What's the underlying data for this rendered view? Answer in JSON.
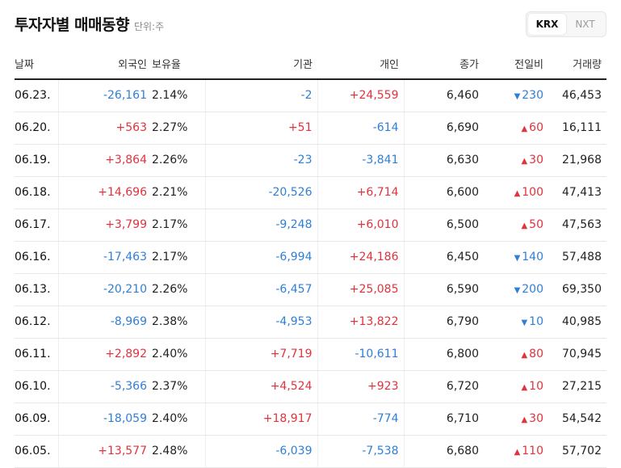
{
  "title": "투자자별 매매동향",
  "unit": "단위:주",
  "market_tabs": [
    {
      "label": "KRX",
      "active": true
    },
    {
      "label": "NXT",
      "active": false
    }
  ],
  "columns": [
    "날짜",
    "외국인",
    "보유율",
    "기관",
    "개인",
    "종가",
    "전일비",
    "거래량"
  ],
  "colors": {
    "up": "#e0333d",
    "down": "#2f7fd6"
  },
  "rows": [
    {
      "date": "06.23.",
      "foreign": "-26,161",
      "foreign_dir": "down",
      "hold": "2.14%",
      "inst": "-2",
      "inst_dir": "down",
      "indiv": "+24,559",
      "indiv_dir": "up",
      "close": "6,460",
      "chg": "230",
      "chg_dir": "down",
      "volume": "46,453"
    },
    {
      "date": "06.20.",
      "foreign": "+563",
      "foreign_dir": "up",
      "hold": "2.27%",
      "inst": "+51",
      "inst_dir": "up",
      "indiv": "-614",
      "indiv_dir": "down",
      "close": "6,690",
      "chg": "60",
      "chg_dir": "up",
      "volume": "16,111"
    },
    {
      "date": "06.19.",
      "foreign": "+3,864",
      "foreign_dir": "up",
      "hold": "2.26%",
      "inst": "-23",
      "inst_dir": "down",
      "indiv": "-3,841",
      "indiv_dir": "down",
      "close": "6,630",
      "chg": "30",
      "chg_dir": "up",
      "volume": "21,968"
    },
    {
      "date": "06.18.",
      "foreign": "+14,696",
      "foreign_dir": "up",
      "hold": "2.21%",
      "inst": "-20,526",
      "inst_dir": "down",
      "indiv": "+6,714",
      "indiv_dir": "up",
      "close": "6,600",
      "chg": "100",
      "chg_dir": "up",
      "volume": "47,413"
    },
    {
      "date": "06.17.",
      "foreign": "+3,799",
      "foreign_dir": "up",
      "hold": "2.17%",
      "inst": "-9,248",
      "inst_dir": "down",
      "indiv": "+6,010",
      "indiv_dir": "up",
      "close": "6,500",
      "chg": "50",
      "chg_dir": "up",
      "volume": "47,563"
    },
    {
      "date": "06.16.",
      "foreign": "-17,463",
      "foreign_dir": "down",
      "hold": "2.17%",
      "inst": "-6,994",
      "inst_dir": "down",
      "indiv": "+24,186",
      "indiv_dir": "up",
      "close": "6,450",
      "chg": "140",
      "chg_dir": "down",
      "volume": "57,488"
    },
    {
      "date": "06.13.",
      "foreign": "-20,210",
      "foreign_dir": "down",
      "hold": "2.26%",
      "inst": "-6,457",
      "inst_dir": "down",
      "indiv": "+25,085",
      "indiv_dir": "up",
      "close": "6,590",
      "chg": "200",
      "chg_dir": "down",
      "volume": "69,350"
    },
    {
      "date": "06.12.",
      "foreign": "-8,969",
      "foreign_dir": "down",
      "hold": "2.38%",
      "inst": "-4,953",
      "inst_dir": "down",
      "indiv": "+13,822",
      "indiv_dir": "up",
      "close": "6,790",
      "chg": "10",
      "chg_dir": "down",
      "volume": "40,985"
    },
    {
      "date": "06.11.",
      "foreign": "+2,892",
      "foreign_dir": "up",
      "hold": "2.40%",
      "inst": "+7,719",
      "inst_dir": "up",
      "indiv": "-10,611",
      "indiv_dir": "down",
      "close": "6,800",
      "chg": "80",
      "chg_dir": "up",
      "volume": "70,945"
    },
    {
      "date": "06.10.",
      "foreign": "-5,366",
      "foreign_dir": "down",
      "hold": "2.37%",
      "inst": "+4,524",
      "inst_dir": "up",
      "indiv": "+923",
      "indiv_dir": "up",
      "close": "6,720",
      "chg": "10",
      "chg_dir": "up",
      "volume": "27,215"
    },
    {
      "date": "06.09.",
      "foreign": "-18,059",
      "foreign_dir": "down",
      "hold": "2.40%",
      "inst": "+18,917",
      "inst_dir": "up",
      "indiv": "-774",
      "indiv_dir": "down",
      "close": "6,710",
      "chg": "30",
      "chg_dir": "up",
      "volume": "54,542"
    },
    {
      "date": "06.05.",
      "foreign": "+13,577",
      "foreign_dir": "up",
      "hold": "2.48%",
      "inst": "-6,039",
      "inst_dir": "down",
      "indiv": "-7,538",
      "indiv_dir": "down",
      "close": "6,680",
      "chg": "110",
      "chg_dir": "up",
      "volume": "57,702"
    }
  ]
}
